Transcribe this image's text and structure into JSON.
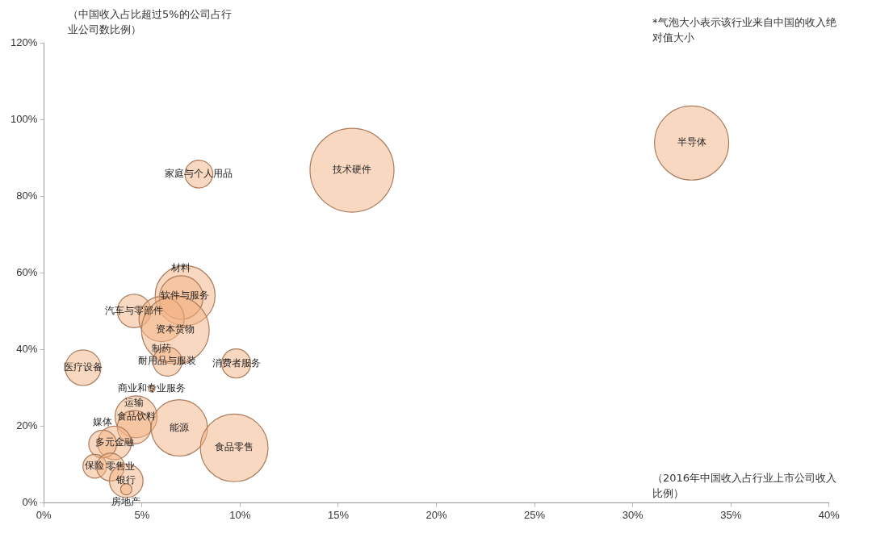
{
  "chart_data": {
    "type": "bubble",
    "xlabel": "（2016年中国收入占行业上市公司收入比例）",
    "ylabel": "（中国收入占比超过5%的公司占行业公司数比例）",
    "annotations": [
      "*气泡大小表示该行业来自中国的收入绝对值大小",
      {
        "text": "半导体",
        "x": 33.0,
        "y": 93.9
      },
      {
        "text": "技术硬件",
        "x": 15.7,
        "y": 86.8
      },
      {
        "text": "家庭与个人用品",
        "x": 7.9,
        "y": 85.8
      },
      {
        "text": "软件与服务",
        "x": 7.2,
        "y": 54.1
      },
      {
        "text": "材料",
        "x": 7.0,
        "y": 53.6
      },
      {
        "text": "汽车与零部件",
        "x": 4.6,
        "y": 50.1
      },
      {
        "text": "制药",
        "x": 6.0,
        "y": 48.0
      },
      {
        "text": "资本货物",
        "x": 6.7,
        "y": 45.1
      },
      {
        "text": "耐用品与服装",
        "x": 6.3,
        "y": 36.9
      },
      {
        "text": "消费者服务",
        "x": 9.8,
        "y": 36.4
      },
      {
        "text": "医疗设备",
        "x": 2.0,
        "y": 35.3
      },
      {
        "text": "商业和专业服务",
        "x": 5.5,
        "y": 29.8
      },
      {
        "text": "食品饮料",
        "x": 4.7,
        "y": 22.5
      },
      {
        "text": "运输",
        "x": 4.6,
        "y": 19.8
      },
      {
        "text": "能源",
        "x": 6.9,
        "y": 19.6
      },
      {
        "text": "食品零售",
        "x": 9.7,
        "y": 14.4
      },
      {
        "text": "多元金融",
        "x": 3.6,
        "y": 15.7
      },
      {
        "text": "媒体",
        "x": 3.0,
        "y": 15.4
      },
      {
        "text": "保险",
        "x": 2.6,
        "y": 9.6
      },
      {
        "text": "零售业",
        "x": 3.4,
        "y": 9.4
      },
      {
        "text": "银行",
        "x": 4.2,
        "y": 5.8
      },
      {
        "text": "房地产",
        "x": 4.2,
        "y": 3.6
      }
    ],
    "series": [
      {
        "color": "#f4b183",
        "x": [
          33.0,
          15.7,
          7.9,
          7.2,
          7.0,
          4.6,
          6.0,
          6.7,
          6.3,
          9.8,
          2.0,
          5.5,
          4.7,
          4.6,
          6.9,
          9.7,
          3.6,
          3.0,
          2.6,
          3.4,
          4.2,
          4.2
        ],
        "values": [
          93.9,
          86.8,
          85.8,
          54.1,
          53.6,
          50.1,
          48.0,
          45.1,
          36.9,
          36.4,
          35.3,
          29.8,
          22.5,
          19.8,
          19.6,
          14.4,
          15.7,
          15.4,
          9.6,
          9.4,
          5.8,
          3.6
        ],
        "sizes": [
          0.78,
          1,
          0.11,
          0.51,
          0.27,
          0.16,
          0.29,
          0.65,
          0.12,
          0.12,
          0.18,
          0.006,
          0.25,
          0.16,
          0.45,
          0.65,
          0.16,
          0.11,
          0.08,
          0.11,
          0.16,
          0.018
        ]
      }
    ],
    "xlim": [
      0,
      40
    ],
    "xticks": [
      {
        "value": 0,
        "label": "0%"
      },
      {
        "value": 5,
        "label": "5%"
      },
      {
        "value": 10,
        "label": "10%"
      },
      {
        "value": 15,
        "label": "15%"
      },
      {
        "value": 20,
        "label": "20%"
      },
      {
        "value": 25,
        "label": "25%"
      },
      {
        "value": 30,
        "label": "30%"
      },
      {
        "value": 35,
        "label": "35%"
      },
      {
        "value": 40,
        "label": "40%"
      }
    ],
    "ylim": [
      0,
      120
    ],
    "yticks": [
      {
        "value": 0,
        "label": "0%"
      },
      {
        "value": 20,
        "label": "20%"
      },
      {
        "value": 40,
        "label": "40%"
      },
      {
        "value": 60,
        "label": "60%"
      },
      {
        "value": 80,
        "label": "80%"
      },
      {
        "value": 100,
        "label": "100%"
      },
      {
        "value": 120,
        "label": "120%"
      }
    ],
    "grid": false,
    "legend": false
  }
}
